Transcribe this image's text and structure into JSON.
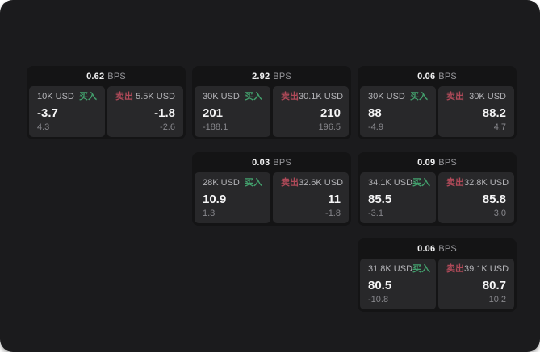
{
  "labels": {
    "buy": "买入",
    "sell": "卖出",
    "bps": "BPS"
  },
  "colors": {
    "buy_green": "#43a06d",
    "sell_red": "#b04a59",
    "page_bg": "#1b1b1d",
    "card_bg": "#141415",
    "panel_bg": "#28282a"
  },
  "cards": [
    {
      "bps": "0.62",
      "buy": {
        "amount": "10K USD",
        "value": "-3.7",
        "sub": "4.3"
      },
      "sell": {
        "amount": "5.5K USD",
        "value": "-1.8",
        "sub": "-2.6"
      }
    },
    {
      "bps": "2.92",
      "buy": {
        "amount": "30K USD",
        "value": "201",
        "sub": "-188.1"
      },
      "sell": {
        "amount": "30.1K USD",
        "value": "210",
        "sub": "196.5"
      }
    },
    {
      "bps": "0.06",
      "buy": {
        "amount": "30K USD",
        "value": "88",
        "sub": "-4.9"
      },
      "sell": {
        "amount": "30K USD",
        "value": "88.2",
        "sub": "4.7"
      }
    },
    {
      "bps": "0.03",
      "buy": {
        "amount": "28K USD",
        "value": "10.9",
        "sub": "1.3"
      },
      "sell": {
        "amount": "32.6K USD",
        "value": "11",
        "sub": "-1.8"
      }
    },
    {
      "bps": "0.09",
      "buy": {
        "amount": "34.1K USD",
        "value": "85.5",
        "sub": "-3.1"
      },
      "sell": {
        "amount": "32.8K USD",
        "value": "85.8",
        "sub": "3.0"
      }
    },
    {
      "bps": "0.06",
      "buy": {
        "amount": "31.8K USD",
        "value": "80.5",
        "sub": "-10.8"
      },
      "sell": {
        "amount": "39.1K USD",
        "value": "80.7",
        "sub": "10.2"
      }
    }
  ]
}
